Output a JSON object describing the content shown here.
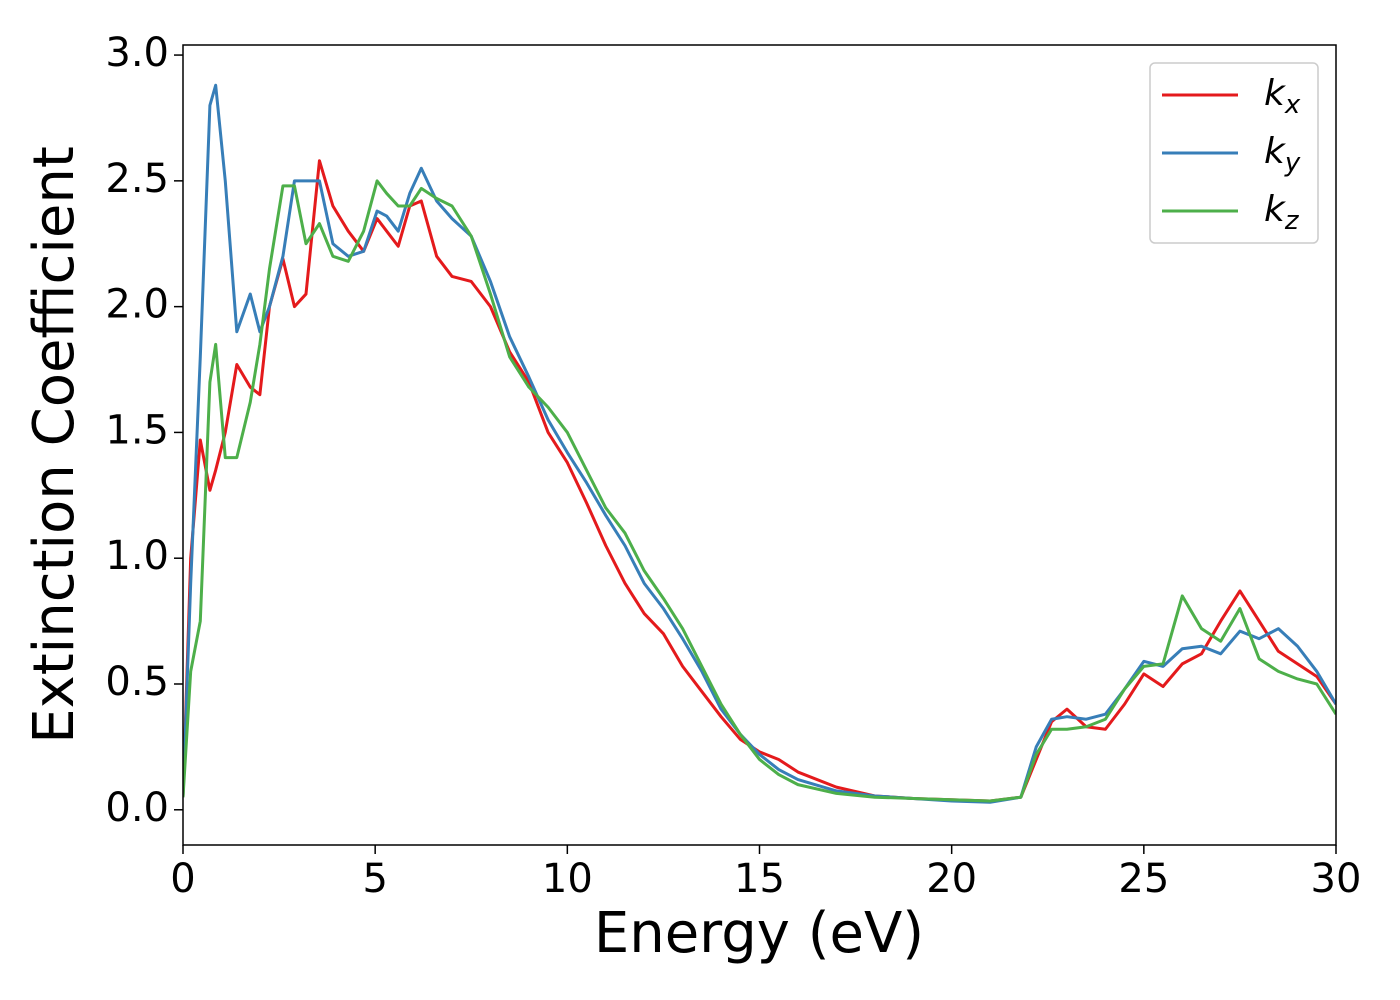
{
  "chart_data": {
    "type": "line",
    "xlabel": "Energy (eV)",
    "ylabel": "Extinction Coefficient",
    "x": [
      0,
      0.2,
      0.45,
      0.7,
      0.85,
      1.1,
      1.4,
      1.75,
      2,
      2.25,
      2.6,
      2.9,
      3.2,
      3.55,
      3.9,
      4.3,
      4.7,
      5.05,
      5.3,
      5.6,
      5.9,
      6.2,
      6.6,
      7,
      7.5,
      8,
      8.5,
      9,
      9.5,
      10,
      10.5,
      11,
      11.5,
      12,
      12.5,
      13,
      13.5,
      14,
      14.5,
      15,
      15.5,
      16,
      17,
      18,
      19,
      20,
      21,
      21.8,
      22.2,
      22.6,
      23,
      23.5,
      24,
      24.5,
      25,
      25.5,
      26,
      26.5,
      27,
      27.5,
      28,
      28.5,
      29,
      29.5,
      30
    ],
    "series": [
      {
        "name": "k_x",
        "color": "#e41a1c",
        "values": [
          0.05,
          1.0,
          1.47,
          1.27,
          1.35,
          1.5,
          1.77,
          1.68,
          1.65,
          2.0,
          2.19,
          2.0,
          2.05,
          2.58,
          2.4,
          2.3,
          2.22,
          2.35,
          2.3,
          2.24,
          2.4,
          2.42,
          2.2,
          2.12,
          2.1,
          2.0,
          1.82,
          1.7,
          1.5,
          1.38,
          1.22,
          1.05,
          0.9,
          0.78,
          0.7,
          0.57,
          0.47,
          0.37,
          0.28,
          0.23,
          0.2,
          0.15,
          0.09,
          0.055,
          0.045,
          0.04,
          0.035,
          0.05,
          0.2,
          0.35,
          0.4,
          0.33,
          0.32,
          0.42,
          0.54,
          0.49,
          0.58,
          0.62,
          0.75,
          0.87,
          0.75,
          0.63,
          0.58,
          0.53,
          0.42
        ]
      },
      {
        "name": "k_y",
        "color": "#377eb8",
        "values": [
          0.05,
          0.9,
          1.8,
          2.8,
          2.88,
          2.5,
          1.9,
          2.05,
          1.9,
          2.0,
          2.2,
          2.5,
          2.5,
          2.5,
          2.25,
          2.2,
          2.22,
          2.38,
          2.36,
          2.3,
          2.45,
          2.55,
          2.42,
          2.35,
          2.28,
          2.1,
          1.88,
          1.72,
          1.55,
          1.42,
          1.3,
          1.17,
          1.05,
          0.9,
          0.8,
          0.68,
          0.55,
          0.4,
          0.3,
          0.22,
          0.16,
          0.12,
          0.075,
          0.055,
          0.045,
          0.035,
          0.03,
          0.05,
          0.25,
          0.36,
          0.37,
          0.36,
          0.38,
          0.48,
          0.59,
          0.57,
          0.64,
          0.65,
          0.62,
          0.71,
          0.68,
          0.72,
          0.65,
          0.55,
          0.42
        ]
      },
      {
        "name": "k_z",
        "color": "#4daf4a",
        "values": [
          0.05,
          0.55,
          0.75,
          1.7,
          1.85,
          1.4,
          1.4,
          1.62,
          1.85,
          2.15,
          2.48,
          2.48,
          2.25,
          2.33,
          2.2,
          2.18,
          2.3,
          2.5,
          2.45,
          2.4,
          2.4,
          2.47,
          2.43,
          2.4,
          2.28,
          2.05,
          1.8,
          1.68,
          1.6,
          1.5,
          1.35,
          1.2,
          1.1,
          0.95,
          0.84,
          0.72,
          0.57,
          0.42,
          0.3,
          0.2,
          0.14,
          0.1,
          0.065,
          0.05,
          0.045,
          0.04,
          0.035,
          0.05,
          0.22,
          0.32,
          0.32,
          0.33,
          0.36,
          0.48,
          0.57,
          0.58,
          0.85,
          0.72,
          0.67,
          0.8,
          0.6,
          0.55,
          0.52,
          0.5,
          0.38
        ]
      }
    ],
    "xlim": [
      0,
      30
    ],
    "xticks": [
      0,
      5,
      10,
      15,
      20,
      25,
      30
    ],
    "ylim": [
      -0.14,
      3.04
    ],
    "yticks": [
      {
        "value": 0,
        "label": "0.0"
      },
      0.5,
      {
        "value": 1,
        "label": "1.0"
      },
      1.5,
      {
        "value": 2,
        "label": "2.0"
      },
      2.5,
      {
        "value": 3,
        "label": "3.0"
      }
    ],
    "legend": "upper right",
    "grid": false
  }
}
